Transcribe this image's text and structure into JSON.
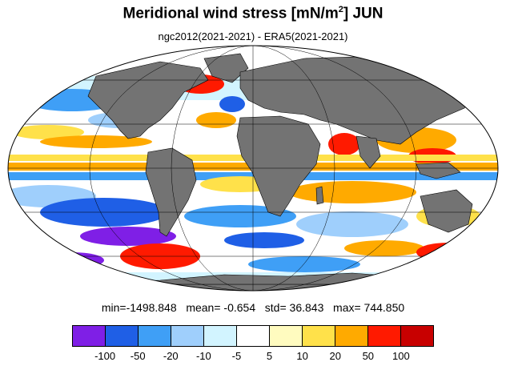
{
  "title": {
    "text_before_sup": "Meridional wind stress [mN/m",
    "sup": "2",
    "text_after_sup": "] JUN"
  },
  "subtitle": "ngc2012(2021-2021) - ERA5(2021-2021)",
  "stats": {
    "min_label": "min=",
    "min": "-1498.848",
    "mean_label": "mean=",
    "mean": "-0.654",
    "std_label": "std=",
    "std": "36.843",
    "max_label": "max=",
    "max": "744.850"
  },
  "colorbar": {
    "colors": [
      "#7f1fe6",
      "#1f5fe6",
      "#3f9ff6",
      "#9fcffc",
      "#d2f4ff",
      "#ffffff",
      "#fffbbf",
      "#ffe14a",
      "#ffaa00",
      "#ff1a00",
      "#c80000"
    ],
    "ticks": [
      "-100",
      "-50",
      "-20",
      "-10",
      "-5",
      "5",
      "10",
      "20",
      "50",
      "100"
    ]
  },
  "map": {
    "projection": "mollweide",
    "land_color": "#737373",
    "ocean_base": "#ffffff"
  }
}
